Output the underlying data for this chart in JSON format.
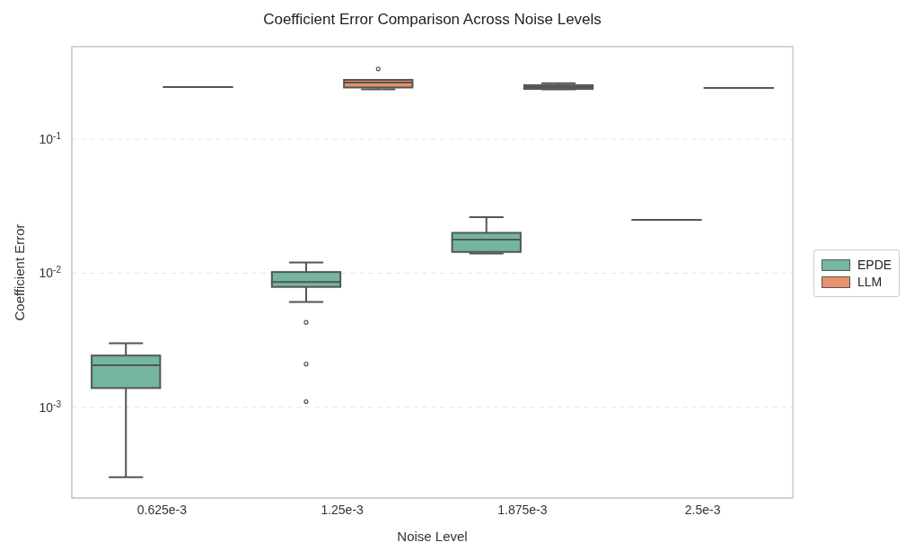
{
  "chart_data": {
    "type": "box",
    "title": "Coefficient Error Comparison Across Noise Levels",
    "xlabel": "Noise Level",
    "ylabel": "Coefficient Error",
    "categories": [
      "0.625e-3",
      "1.25e-3",
      "1.875e-3",
      "2.5e-3"
    ],
    "log": "y",
    "ylim": [
      0.00021,
      0.49
    ],
    "yticks": [
      {
        "value": 0.001,
        "label": "10$^{-3}$"
      },
      {
        "value": 0.01,
        "label": "10$^{-2}$"
      },
      {
        "value": 0.1,
        "label": "10$^{-1}$"
      }
    ],
    "grid": "y",
    "legend": "right",
    "series": [
      {
        "name": "EPDE",
        "color": "#74b6a0",
        "boxes": [
          {
            "low": 0.0003,
            "q1": 0.00139,
            "median": 0.00206,
            "q3": 0.00243,
            "high": 0.003
          },
          {
            "low": 0.0061,
            "q1": 0.0079,
            "median": 0.0086,
            "q3": 0.0102,
            "high": 0.012,
            "outliers": [
              0.0043,
              0.0021,
              0.0011
            ]
          },
          {
            "low": 0.014,
            "q1": 0.0144,
            "median": 0.0178,
            "q3": 0.02,
            "high": 0.0262
          },
          {
            "low": 0.025,
            "q1": 0.025,
            "median": 0.025,
            "q3": 0.025,
            "high": 0.025
          }
        ]
      },
      {
        "name": "LLM",
        "color": "#e8916c",
        "boxes": [
          {
            "low": 0.245,
            "q1": 0.245,
            "median": 0.245,
            "q3": 0.245,
            "high": 0.245
          },
          {
            "low": 0.236,
            "q1": 0.243,
            "median": 0.264,
            "q3": 0.277,
            "high": 0.277,
            "outliers": [
              0.334
            ]
          },
          {
            "low": 0.236,
            "q1": 0.237,
            "median": 0.245,
            "q3": 0.253,
            "high": 0.261
          },
          {
            "low": 0.241,
            "q1": 0.241,
            "median": 0.241,
            "q3": 0.241,
            "high": 0.241
          }
        ]
      }
    ]
  }
}
